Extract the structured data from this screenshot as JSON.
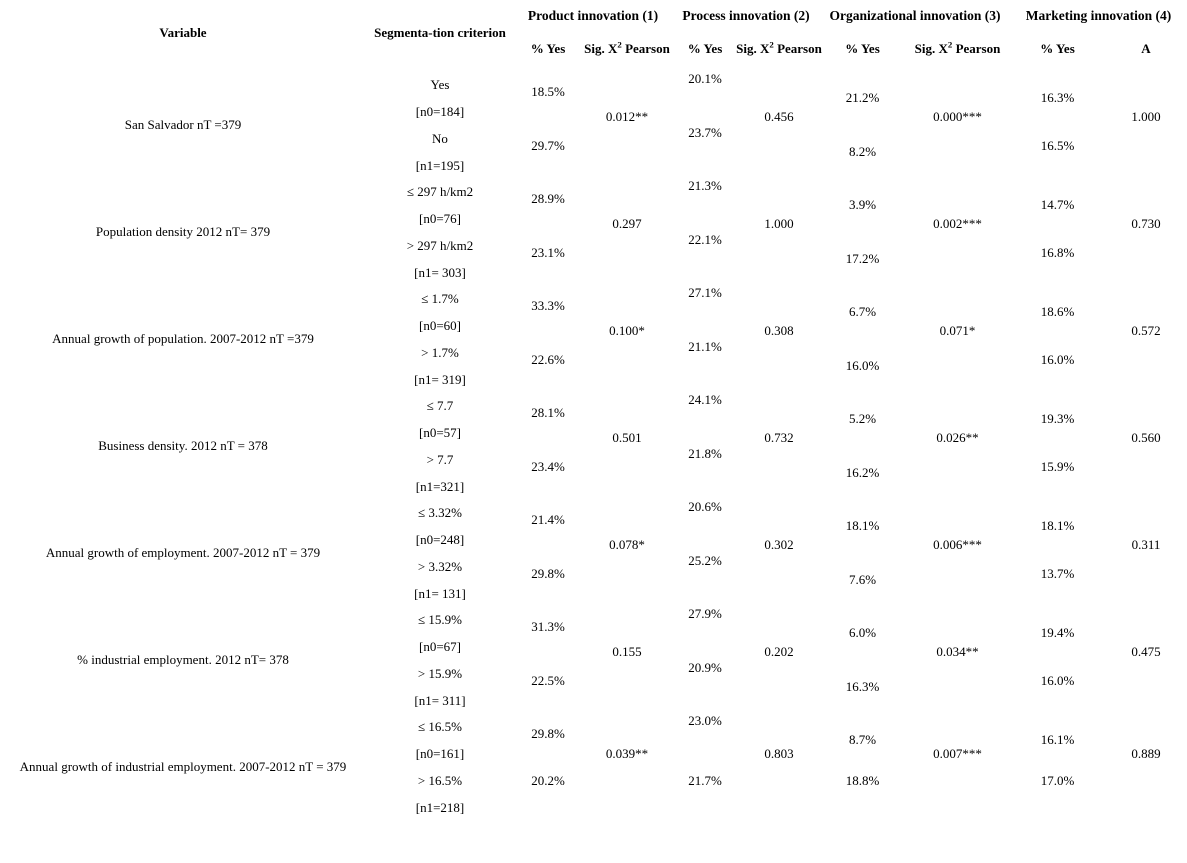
{
  "header": {
    "variable_label": "Variable",
    "criterion_label": "Segmenta-tion criterion",
    "yes_label": "% Yes",
    "sig_label_pre": "Sig. X",
    "sig_label_sup": "2",
    "sig_label_post": " Pearson",
    "a_label": "A",
    "groups": [
      {
        "label": "Product innovation (1)"
      },
      {
        "label": "Process innovation (2)"
      },
      {
        "label": "Organizational innovation (3)"
      },
      {
        "label": "Marketing innovation (4)"
      }
    ]
  },
  "rows": [
    {
      "variable": "San Salvador nT =379",
      "crit1": "Yes",
      "n0": "[n0=184]",
      "crit2": "No",
      "n1": "[n1=195]",
      "product": {
        "yes1": "18.5%",
        "yes2": "29.7%",
        "sig": "0.012**"
      },
      "process": {
        "yes1": "20.1%",
        "yes2": "23.7%",
        "sig": "0.456"
      },
      "organizational": {
        "yes1": "21.2%",
        "yes2": "8.2%",
        "sig": "0.000***"
      },
      "marketing": {
        "yes1": "16.3%",
        "yes2": "16.5%",
        "a": "1.000"
      }
    },
    {
      "variable": "Population density 2012 nT= 379",
      "crit1": "≤ 297 h/km2",
      "n0": "[n0=76]",
      "crit2": "> 297 h/km2",
      "n1": "[n1= 303]",
      "product": {
        "yes1": "28.9%",
        "yes2": "23.1%",
        "sig": "0.297"
      },
      "process": {
        "yes1": "21.3%",
        "yes2": "22.1%",
        "sig": "1.000"
      },
      "organizational": {
        "yes1": "3.9%",
        "yes2": "17.2%",
        "sig": "0.002***"
      },
      "marketing": {
        "yes1": "14.7%",
        "yes2": "16.8%",
        "a": "0.730"
      }
    },
    {
      "variable": "Annual growth of population. 2007-2012 nT =379",
      "crit1": "≤ 1.7%",
      "n0": "[n0=60]",
      "crit2": "> 1.7%",
      "n1": "[n1= 319]",
      "product": {
        "yes1": "33.3%",
        "yes2": "22.6%",
        "sig": "0.100*"
      },
      "process": {
        "yes1": "27.1%",
        "yes2": "21.1%",
        "sig": "0.308"
      },
      "organizational": {
        "yes1": "6.7%",
        "yes2": "16.0%",
        "sig": "0.071*"
      },
      "marketing": {
        "yes1": "18.6%",
        "yes2": "16.0%",
        "a": "0.572"
      }
    },
    {
      "variable": "Business density. 2012 nT = 378",
      "crit1": "≤ 7.7",
      "n0": "[n0=57]",
      "crit2": "> 7.7",
      "n1": "[n1=321]",
      "product": {
        "yes1": "28.1%",
        "yes2": "23.4%",
        "sig": "0.501"
      },
      "process": {
        "yes1": "24.1%",
        "yes2": "21.8%",
        "sig": "0.732"
      },
      "organizational": {
        "yes1": "5.2%",
        "yes2": "16.2%",
        "sig": "0.026**"
      },
      "marketing": {
        "yes1": "19.3%",
        "yes2": "15.9%",
        "a": "0.560"
      }
    },
    {
      "variable": "Annual growth of employment. 2007-2012 nT = 379",
      "crit1": "≤ 3.32%",
      "n0": "[n0=248]",
      "crit2": "> 3.32%",
      "n1": "[n1= 131]",
      "product": {
        "yes1": "21.4%",
        "yes2": "29.8%",
        "sig": "0.078*"
      },
      "process": {
        "yes1": "20.6%",
        "yes2": "25.2%",
        "sig": "0.302"
      },
      "organizational": {
        "yes1": "18.1%",
        "yes2": "7.6%",
        "sig": "0.006***"
      },
      "marketing": {
        "yes1": "18.1%",
        "yes2": "13.7%",
        "a": "0.311"
      }
    },
    {
      "variable": "% industrial employment. 2012 nT= 378",
      "crit1": "≤ 15.9%",
      "n0": "[n0=67]",
      "crit2": "> 15.9%",
      "n1": "[n1= 311]",
      "product": {
        "yes1": "31.3%",
        "yes2": "22.5%",
        "sig": "0.155"
      },
      "process": {
        "yes1": "27.9%",
        "yes2": "20.9%",
        "sig": "0.202"
      },
      "organizational": {
        "yes1": "6.0%",
        "yes2": "16.3%",
        "sig": "0.034**"
      },
      "marketing": {
        "yes1": "19.4%",
        "yes2": "16.0%",
        "a": "0.475"
      }
    },
    {
      "variable": "Annual growth of industrial employment. 2007-2012 nT = 379",
      "crit1": "≤ 16.5%",
      "n0": "[n0=161]",
      "crit2": "> 16.5%",
      "n1": "[n1=218]",
      "product": {
        "yes1": "29.8%",
        "yes2": "20.2%",
        "sig": "0.039**"
      },
      "process": {
        "yes1": "23.0%",
        "yes2": "21.7%",
        "sig": "0.803"
      },
      "organizational": {
        "yes1": "8.7%",
        "yes2": "18.8%",
        "sig": "0.007***"
      },
      "marketing": {
        "yes1": "16.1%",
        "yes2": "17.0%",
        "a": "0.889"
      }
    }
  ]
}
